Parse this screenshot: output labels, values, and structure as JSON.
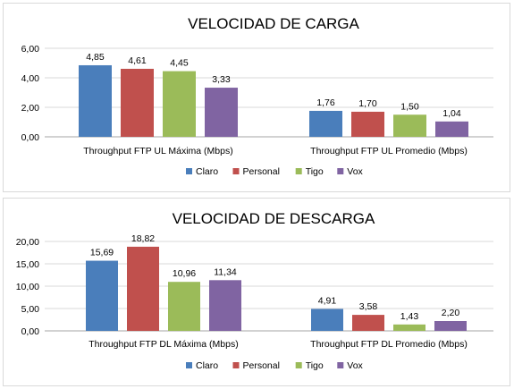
{
  "colors": {
    "Claro": "#4a7ebb",
    "Personal": "#c0504d",
    "Tigo": "#9bbb59",
    "Vox": "#8064a2",
    "grid": "#d9d9d9",
    "axis": "#a6a6a6"
  },
  "chart_data": [
    {
      "type": "bar",
      "title": "VELOCIDAD DE CARGA",
      "categories": [
        "Throughput FTP UL Máxima (Mbps)",
        "Throughput FTP UL Promedio (Mbps)"
      ],
      "series": [
        {
          "name": "Claro",
          "values": [
            4.85,
            1.76
          ],
          "labels": [
            "4,85",
            "1,76"
          ]
        },
        {
          "name": "Personal",
          "values": [
            4.61,
            1.7
          ],
          "labels": [
            "4,61",
            "1,70"
          ]
        },
        {
          "name": "Tigo",
          "values": [
            4.45,
            1.5
          ],
          "labels": [
            "4,45",
            "1,50"
          ]
        },
        {
          "name": "Vox",
          "values": [
            3.33,
            1.04
          ],
          "labels": [
            "3,33",
            "1,04"
          ]
        }
      ],
      "ylim": [
        0,
        6
      ],
      "yticks": [
        "0,00",
        "2,00",
        "4,00",
        "6,00"
      ],
      "ytick_values": [
        0,
        2,
        4,
        6
      ],
      "legend": "bottom",
      "grid": true
    },
    {
      "type": "bar",
      "title": "VELOCIDAD DE DESCARGA",
      "categories": [
        "Throughput FTP DL Máxima (Mbps)",
        "Throughput FTP DL Promedio (Mbps)"
      ],
      "series": [
        {
          "name": "Claro",
          "values": [
            15.69,
            4.91
          ],
          "labels": [
            "15,69",
            "4,91"
          ]
        },
        {
          "name": "Personal",
          "values": [
            18.82,
            3.58
          ],
          "labels": [
            "18,82",
            "3,58"
          ]
        },
        {
          "name": "Tigo",
          "values": [
            10.96,
            1.43
          ],
          "labels": [
            "10,96",
            "1,43"
          ]
        },
        {
          "name": "Vox",
          "values": [
            11.34,
            2.2
          ],
          "labels": [
            "11,34",
            "2,20"
          ]
        }
      ],
      "ylim": [
        0,
        20
      ],
      "yticks": [
        "0,00",
        "5,00",
        "10,00",
        "15,00",
        "20,00"
      ],
      "ytick_values": [
        0,
        5,
        10,
        15,
        20
      ],
      "legend": "bottom",
      "grid": true
    }
  ]
}
